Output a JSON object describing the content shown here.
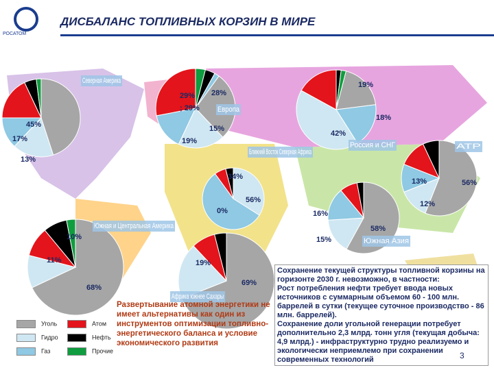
{
  "header": {
    "title": "ДИСБАЛАНС ТОПЛИВНЫХ КОРЗИН В МИРЕ",
    "logo": "РОСАТОМ"
  },
  "regions": [
    {
      "name": "Северная Америка",
      "labels": [
        "45%",
        "17%",
        "13%"
      ]
    },
    {
      "name": "Европа",
      "labels": [
        "29%",
        "; 29%",
        "28%",
        "15%",
        "19%"
      ]
    },
    {
      "name": "Россия и СНГ",
      "labels": [
        "19%",
        "18%",
        "42%"
      ]
    },
    {
      "name": "Ближний Восток Северная Африка",
      "labels": [
        "34%",
        "56%",
        "0%"
      ]
    },
    {
      "name": "АТР",
      "labels": [
        "13%",
        "56%",
        "12%"
      ]
    },
    {
      "name": "Южная Азия",
      "labels": [
        "16%",
        "58%",
        "15%"
      ]
    },
    {
      "name": "Южная и Центральная Америка",
      "labels": [
        "10%",
        "11%",
        "68%"
      ]
    },
    {
      "name": "Африка южнее Сахары",
      "labels": [
        "19%",
        "69%"
      ]
    }
  ],
  "legend": [
    {
      "label": "Уголь",
      "color": "#a6a6a6"
    },
    {
      "label": "Атом",
      "color": "#e3141b"
    },
    {
      "label": "Гидро",
      "color": "#cfe7f2"
    },
    {
      "label": "Нефть",
      "color": "#000000"
    },
    {
      "label": "Газ",
      "color": "#8fc9e3"
    },
    {
      "label": "Прочие",
      "color": "#0f9d3f"
    }
  ],
  "center_text": "Развертывание атомной энергетики не имеет альтернативы как один из инструментов оптимизации топливно-энергетического баланса и условие экономического развития",
  "right_text": [
    "Сохранение текущей структуры топливной корзины на горизонте 2030 г. невозможно, в частности:",
    "Рост потребления нефти требует ввода новых источников с суммарным объемом 60 - 100 млн. баррелей в сутки (текущее суточное производство - 86 млн. баррелей).",
    "Сохранение доли угольной генерации потребует дополнительно 2,3 млрд. тонн угля (текущая добыча: 4,9 млрд.) - инфраструктурно трудно реализуемо и экологически неприемлемо при сохранении современных технологий"
  ],
  "page_number": "3"
}
